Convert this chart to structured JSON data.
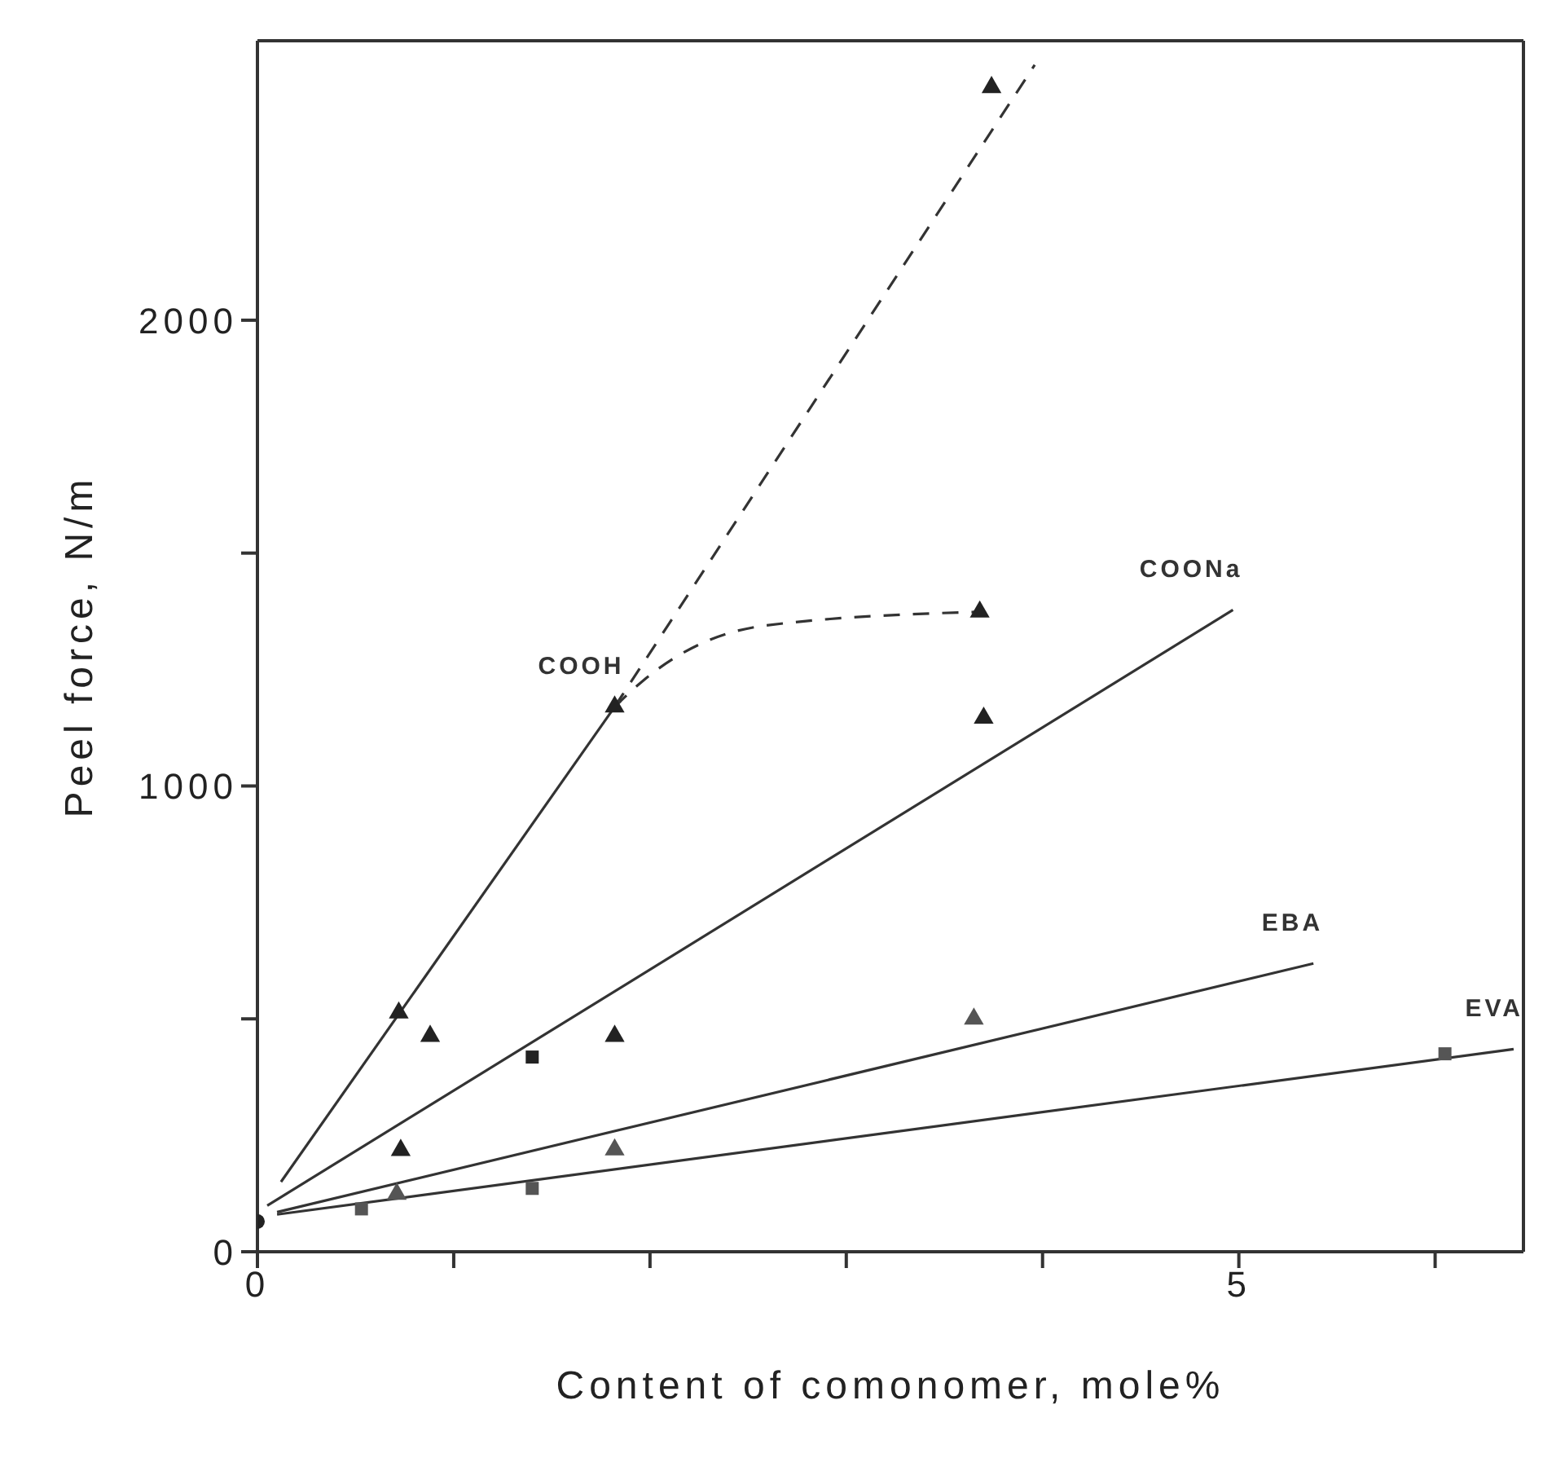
{
  "chart_data": {
    "type": "scatter",
    "xlabel": "Content of comonomer, mole%",
    "ylabel": "Peel force, N/m",
    "xlim": [
      0,
      6.45
    ],
    "ylim": [
      0,
      2600
    ],
    "xticks": [
      0,
      {
        "value": 1,
        "label": null
      },
      {
        "value": 2,
        "label": null
      },
      {
        "value": 3,
        "label": null
      },
      {
        "value": 4,
        "label": null
      },
      5,
      {
        "value": 6,
        "label": null
      }
    ],
    "yticks": [
      0,
      {
        "value": 500,
        "label": null
      },
      1000,
      {
        "value": 1500,
        "label": null
      },
      2000
    ],
    "grid": false,
    "legend": false,
    "series": [
      {
        "type": "line",
        "name": "COOH",
        "color": "#333333",
        "line_style": "solid",
        "x": [
          0.12,
          1.82
        ],
        "values": [
          150,
          1170
        ]
      },
      {
        "type": "line",
        "color": "#333333",
        "line_style": "dashed",
        "x": [
          1.82,
          3.96
        ],
        "values": [
          1170,
          2548
        ]
      },
      {
        "type": "line",
        "color": "#333333",
        "line_style": "dashed",
        "x": [
          1.82,
          1.97,
          2.58,
          3.68
        ],
        "values": [
          1170,
          1228,
          1344,
          1374
        ]
      },
      {
        "type": "line",
        "name": "COONa",
        "color": "#333333",
        "line_style": "solid",
        "x": [
          0.05,
          4.97
        ],
        "values": [
          99,
          1378
        ]
      },
      {
        "type": "line",
        "name": "EBA",
        "color": "#333333",
        "line_style": "solid",
        "x": [
          0.1,
          5.38
        ],
        "values": [
          85,
          619
        ]
      },
      {
        "type": "line",
        "name": "EVA",
        "color": "#333333",
        "line_style": "solid",
        "x": [
          0.1,
          6.4
        ],
        "values": [
          80,
          435
        ]
      },
      {
        "color": "#222222",
        "marker": "circle",
        "x": [
          0
        ],
        "values": [
          65
        ]
      },
      {
        "color": "#222222",
        "marker": "triangle",
        "x": [
          0.72,
          1.82,
          3.68,
          3.74
        ],
        "values": [
          513,
          1170,
          1374,
          2500
        ]
      },
      {
        "color": "#222222",
        "marker": "triangle",
        "x": [
          0.73,
          0.88,
          1.82,
          3.7
        ],
        "values": [
          218,
          463,
          463,
          1146
        ]
      },
      {
        "color": "#222222",
        "marker": "square",
        "x": [
          1.4
        ],
        "values": [
          418
        ]
      },
      {
        "color": "#555555",
        "marker": "triangle",
        "x": [
          0.71,
          1.82,
          3.65
        ],
        "values": [
          124,
          219,
          500
        ]
      },
      {
        "color": "#555555",
        "marker": "square",
        "x": [
          0.53,
          1.4,
          6.05
        ],
        "values": [
          92,
          136,
          425
        ]
      }
    ]
  }
}
